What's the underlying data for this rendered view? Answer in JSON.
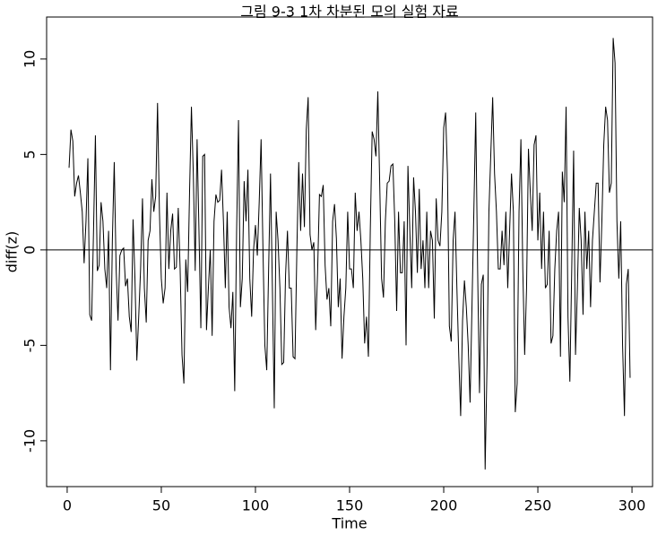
{
  "chart_data": {
    "type": "line",
    "title": "그림 9-3 1차 차분된 모의 실험 자료",
    "xlabel": "Time",
    "ylabel": "diff(z)",
    "xlim": [
      -10.92,
      310.92
    ],
    "ylim": [
      -12.4,
      12.2
    ],
    "xticks": [
      0,
      50,
      100,
      150,
      200,
      250,
      300
    ],
    "yticks": [
      -10,
      -5,
      0,
      5,
      10
    ],
    "hline": 0,
    "color": "#000000",
    "x": [
      1,
      2,
      3,
      4,
      5,
      6,
      7,
      8,
      9,
      10,
      11,
      12,
      13,
      14,
      15,
      16,
      17,
      18,
      19,
      20,
      21,
      22,
      23,
      24,
      25,
      26,
      27,
      28,
      29,
      30,
      31,
      32,
      33,
      34,
      35,
      36,
      37,
      38,
      39,
      40,
      41,
      42,
      43,
      44,
      45,
      46,
      47,
      48,
      49,
      50,
      51,
      52,
      53,
      54,
      55,
      56,
      57,
      58,
      59,
      60,
      61,
      62,
      63,
      64,
      65,
      66,
      67,
      68,
      69,
      70,
      71,
      72,
      73,
      74,
      75,
      76,
      77,
      78,
      79,
      80,
      81,
      82,
      83,
      84,
      85,
      86,
      87,
      88,
      89,
      90,
      91,
      92,
      93,
      94,
      95,
      96,
      97,
      98,
      99,
      100,
      101,
      102,
      103,
      104,
      105,
      106,
      107,
      108,
      109,
      110,
      111,
      112,
      113,
      114,
      115,
      116,
      117,
      118,
      119,
      120,
      121,
      122,
      123,
      124,
      125,
      126,
      127,
      128,
      129,
      130,
      131,
      132,
      133,
      134,
      135,
      136,
      137,
      138,
      139,
      140,
      141,
      142,
      143,
      144,
      145,
      146,
      147,
      148,
      149,
      150,
      151,
      152,
      153,
      154,
      155,
      156,
      157,
      158,
      159,
      160,
      161,
      162,
      163,
      164,
      165,
      166,
      167,
      168,
      169,
      170,
      171,
      172,
      173,
      174,
      175,
      176,
      177,
      178,
      179,
      180,
      181,
      182,
      183,
      184,
      185,
      186,
      187,
      188,
      189,
      190,
      191,
      192,
      193,
      194,
      195,
      196,
      197,
      198,
      199,
      200,
      201,
      202,
      203,
      204,
      205,
      206,
      207,
      208,
      209,
      210,
      211,
      212,
      213,
      214,
      215,
      216,
      217,
      218,
      219,
      220,
      221,
      222,
      223,
      224,
      225,
      226,
      227,
      228,
      229,
      230,
      231,
      232,
      233,
      234,
      235,
      236,
      237,
      238,
      239,
      240,
      241,
      242,
      243,
      244,
      245,
      246,
      247,
      248,
      249,
      250,
      251,
      252,
      253,
      254,
      255,
      256,
      257,
      258,
      259,
      260,
      261,
      262,
      263,
      264,
      265,
      266,
      267,
      268,
      269,
      270,
      271,
      272,
      273,
      274,
      275,
      276,
      277,
      278,
      279,
      280,
      281,
      282,
      283,
      284,
      285,
      286,
      287,
      288,
      289,
      290,
      291,
      292,
      293,
      294,
      295,
      296,
      297,
      298,
      299
    ],
    "values": [
      4.3,
      6.3,
      5.7,
      2.8,
      3.5,
      3.9,
      3.0,
      2.0,
      -0.7,
      1.5,
      4.8,
      -3.4,
      -3.7,
      1.0,
      6.0,
      -1.1,
      -0.8,
      2.5,
      1.5,
      -1.0,
      -2,
      1,
      -6.3,
      0.5,
      4.6,
      -1.0,
      -3.7,
      -0.3,
      0,
      0.1,
      -1.9,
      -1.5,
      -3.5,
      -4.3,
      1.6,
      -1.5,
      -5.8,
      -3.5,
      -1.0,
      2.7,
      -2.0,
      -3.8,
      0.5,
      1.0,
      3.7,
      2.0,
      2.8,
      7.7,
      2.0,
      -1.5,
      -2.8,
      -2.0,
      3,
      -1,
      1.0,
      1.9,
      -1.0,
      -0.9,
      2.2,
      -1.0,
      -5.5,
      -7.0,
      -0.5,
      -2.2,
      3.0,
      7.5,
      4.0,
      -1.1,
      5.8,
      1.0,
      -4.1,
      4.9,
      5.0,
      -4.2,
      -2.0,
      0,
      -4.5,
      1.5,
      2.9,
      2.5,
      2.6,
      4.2,
      1.5,
      -2.0,
      2,
      -3,
      -4.1,
      -2.2,
      -7.4,
      1.0,
      6.8,
      -3.0,
      -1.5,
      3.6,
      1.5,
      4.2,
      -1.5,
      -3.5,
      0,
      1.3,
      -0.3,
      2.5,
      5.8,
      0,
      -5.0,
      -6.3,
      -1.0,
      4.0,
      -2.0,
      -8.3,
      2.0,
      0.5,
      -2.0,
      -6.0,
      -5.9,
      -1.3,
      1,
      -2,
      -2.0,
      -5.6,
      -5.7,
      0,
      4.6,
      1.0,
      4.0,
      1.2,
      6.3,
      8.0,
      0.8,
      0,
      0.4,
      -4.2,
      -1.2,
      2.9,
      2.8,
      3.4,
      -0.8,
      -2.6,
      -2.0,
      -4.0,
      1.5,
      2.4,
      0.6,
      -3.0,
      -1.5,
      -5.7,
      -3.5,
      -2.0,
      2,
      -1,
      -1.0,
      -2.0,
      3.0,
      1.0,
      2.0,
      0.5,
      -1.5,
      -4.9,
      -3.5,
      -5.6,
      1.0,
      6.2,
      5.8,
      4.9,
      8.3,
      3.5,
      -1.5,
      -2.5,
      1.5,
      3.5,
      3.6,
      4.4,
      4.5,
      1.5,
      -3.2,
      2.0,
      -1.2,
      -1.2,
      1.5,
      -5.0,
      4.4,
      1.0,
      -2.0,
      3.8,
      2.0,
      -1.2,
      3.2,
      -1.0,
      0.5,
      -2.0,
      2,
      -2,
      1.0,
      0.5,
      -3.6,
      2.7,
      0.5,
      0.2,
      2.0,
      6.4,
      7.2,
      4.0,
      -4.0,
      -4.8,
      0.5,
      2.0,
      -2.0,
      -5.6,
      -8.7,
      -3.7,
      -1.6,
      -3.0,
      -5.0,
      -8.0,
      -3.0,
      2.0,
      7.2,
      -1.0,
      -7.5,
      -1.8,
      -1.3,
      -11.5,
      -6.0,
      2.0,
      5.0,
      8.0,
      4.0,
      2.0,
      -1.0,
      -1.0,
      1.0,
      -0.8,
      2,
      -2,
      1,
      4.0,
      2.0,
      -8.5,
      -7.0,
      2.0,
      5.8,
      -1.0,
      -5.5,
      -2.0,
      5.3,
      3.0,
      1.0,
      5.5,
      6.0,
      0.5,
      3,
      -1,
      2,
      -2,
      -1.8,
      1.0,
      -4.9,
      -4.5,
      -1.0,
      1.0,
      2.0,
      -5.6,
      4.1,
      2.5,
      7.5,
      -3.5,
      -6.9,
      -1.0,
      5.2,
      -5.5,
      -2.0,
      2.2,
      0.5,
      -3.4,
      2,
      -1,
      1,
      -3,
      0.5,
      2.0,
      3.5,
      3.5,
      -1.7,
      1.5,
      5.5,
      7.5,
      6.8,
      3.0,
      3.5,
      11.1,
      9.8,
      1.5,
      -1.5,
      1.5,
      -5.0,
      -8.7,
      -1.8,
      -1.0,
      -6.7
    ]
  }
}
